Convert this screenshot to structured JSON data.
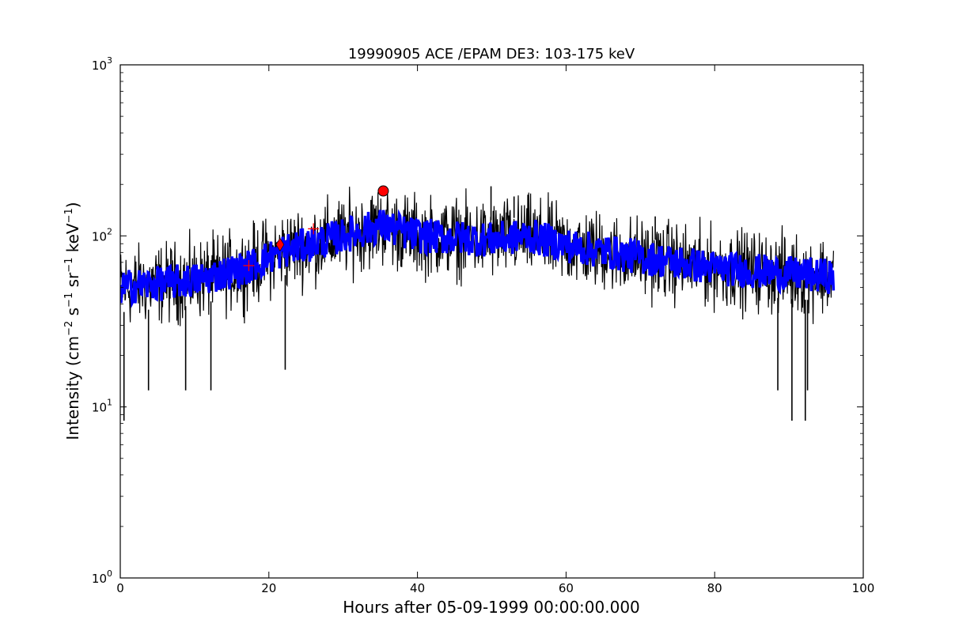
{
  "chart_data": {
    "type": "line",
    "title": "19990905 ACE /EPAM DE3: 103-175 keV",
    "xlabel": "Hours after 05-09-1999 00:00:00.000",
    "ylabel": {
      "text_a": "Intensity (cm",
      "sup_a": "−2",
      "text_b": " s",
      "sup_b": "−1",
      "text_c": " sr",
      "sup_c": "−1",
      "text_d": " keV",
      "sup_d": "−1",
      "text_e": ")"
    },
    "x_scale": "linear",
    "y_scale": "log",
    "xlim": [
      0,
      100
    ],
    "ylim": [
      1,
      1000
    ],
    "x_ticks": [
      "0",
      "20",
      "40",
      "60",
      "80",
      "100"
    ],
    "y_ticks": [
      {
        "base": "10",
        "exp": "0"
      },
      {
        "base": "10",
        "exp": "1"
      },
      {
        "base": "10",
        "exp": "2"
      },
      {
        "base": "10",
        "exp": "3"
      }
    ],
    "grid": false,
    "series": [
      {
        "style": "raw-noisy",
        "color": "#000000",
        "x_range": [
          0,
          96
        ],
        "trend_points": [
          [
            0,
            50
          ],
          [
            10,
            55
          ],
          [
            17,
            65
          ],
          [
            22,
            82
          ],
          [
            30,
            100
          ],
          [
            35,
            115
          ],
          [
            40,
            100
          ],
          [
            50,
            95
          ],
          [
            55,
            100
          ],
          [
            60,
            88
          ],
          [
            70,
            75
          ],
          [
            80,
            65
          ],
          [
            90,
            60
          ],
          [
            96,
            58
          ]
        ],
        "spread_factor": 1.45,
        "spike_lows": [
          [
            0.5,
            8.3
          ],
          [
            3.8,
            12.5
          ],
          [
            8.8,
            12.5
          ],
          [
            12.2,
            12.5
          ],
          [
            22.2,
            16.5
          ],
          [
            88.5,
            12.5
          ],
          [
            90.4,
            8.3
          ],
          [
            92.2,
            8.3
          ],
          [
            92.5,
            12.5
          ]
        ],
        "spike_highs": [
          [
            49.9,
            195
          ],
          [
            53.0,
            170
          ],
          [
            72.0,
            130
          ]
        ]
      },
      {
        "style": "smoothed-band",
        "color": "#0000ff",
        "x_range": [
          0,
          96
        ],
        "band_factor": 1.22
      }
    ],
    "markers": [
      {
        "shape": "plus",
        "x": 17.3,
        "y": 67,
        "color": "#ff0000"
      },
      {
        "shape": "diamond",
        "x": 21.5,
        "y": 89,
        "color": "#ff0000"
      },
      {
        "shape": "plus",
        "x": 26.0,
        "y": 110,
        "color": "#ff0000"
      },
      {
        "shape": "circle",
        "x": 35.4,
        "y": 183,
        "color": "#ff0000"
      }
    ]
  }
}
